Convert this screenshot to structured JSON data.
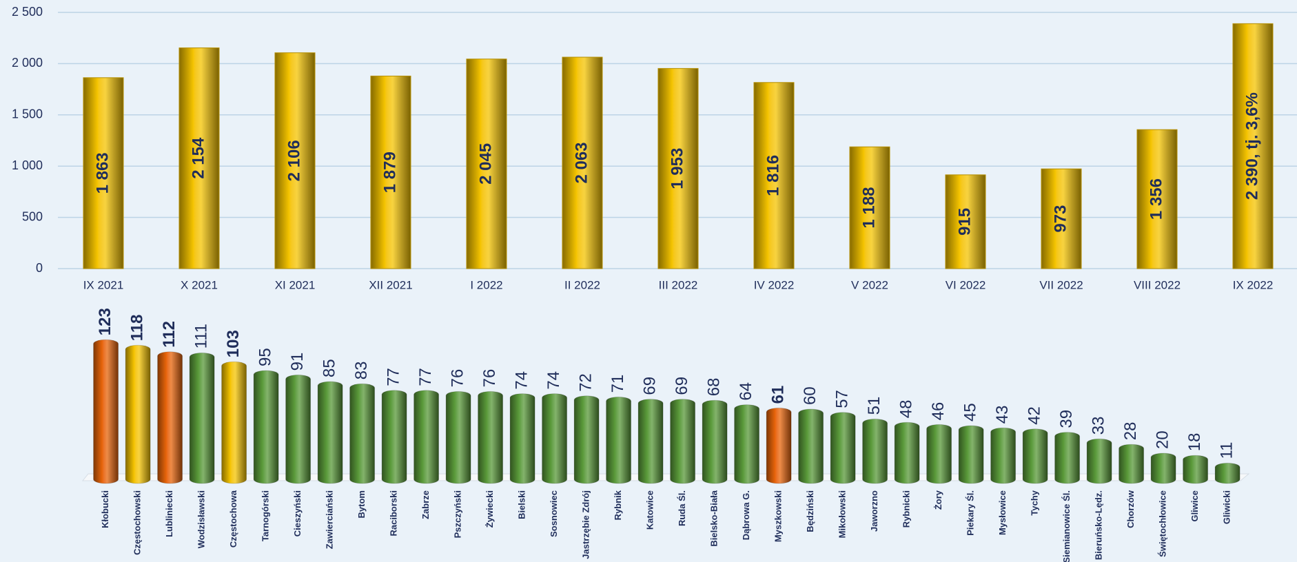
{
  "chart_data": [
    {
      "type": "bar",
      "categories": [
        "IX 2021",
        "X 2021",
        "XI 2021",
        "XII 2021",
        "I 2022",
        "II 2022",
        "III 2022",
        "IV 2022",
        "V 2022",
        "VI 2022",
        "VII 2022",
        "VIII 2022",
        "IX 2022"
      ],
      "values": [
        1863,
        2154,
        2106,
        1879,
        2045,
        2063,
        1953,
        1816,
        1188,
        915,
        973,
        1356,
        2390
      ],
      "value_labels": [
        "1 863",
        "2 154",
        "2 106",
        "1 879",
        "2 045",
        "2 063",
        "1 953",
        "1 816",
        "1 188",
        "915",
        "973",
        "1 356",
        "2 390, tj. 3,6%"
      ],
      "color": "#f5c400",
      "ylim": [
        0,
        2500
      ],
      "yticks": [
        0,
        500,
        {
          "value": 1000,
          "label": "1 000"
        },
        {
          "value": 1500,
          "label": "1 500"
        },
        {
          "value": 2000,
          "label": "2 000"
        },
        {
          "value": 2500,
          "label": "2 500"
        }
      ],
      "grid": true
    },
    {
      "type": "cylinder",
      "categories": [
        "Kłobucki",
        "Częstochowski",
        "Lubliniecki",
        "Wodzisławski",
        "Częstochowa",
        "Tarnogórski",
        "Cieszyński",
        "Zawierciański",
        "Bytom",
        "Raciborski",
        "Zabrze",
        "Pszczyński",
        "Żywiecki",
        "Bielski",
        "Sosnowiec",
        "Jastrzębie Zdrój",
        "Rybnik",
        "Katowice",
        "Ruda Śl.",
        "Bielsko-Biała",
        "Dąbrowa G.",
        "Myszkowski",
        "Będziński",
        "Mikołowski",
        "Jaworzno",
        "Rybnicki",
        "Żory",
        "Piekary Śl.",
        "Mysłowice",
        "Tychy",
        "Siemianowice Śl.",
        "Bieruńsko-Lędz.",
        "Chorzów",
        "Świętochłowice",
        "Gliwice",
        "Gliwicki"
      ],
      "values": [
        123,
        118,
        112,
        111,
        103,
        95,
        91,
        85,
        83,
        77,
        77,
        76,
        76,
        74,
        74,
        72,
        71,
        69,
        69,
        68,
        64,
        61,
        60,
        57,
        51,
        48,
        46,
        45,
        43,
        42,
        39,
        33,
        28,
        20,
        18,
        11
      ],
      "color": "#5a9a3a",
      "colors": [
        "#e8650a",
        "#f5c400",
        "#e8650a",
        "#5a9a3a",
        "#f5c400",
        "#5a9a3a",
        "#5a9a3a",
        "#5a9a3a",
        "#5a9a3a",
        "#5a9a3a",
        "#5a9a3a",
        "#5a9a3a",
        "#5a9a3a",
        "#5a9a3a",
        "#5a9a3a",
        "#5a9a3a",
        "#5a9a3a",
        "#5a9a3a",
        "#5a9a3a",
        "#5a9a3a",
        "#5a9a3a",
        "#e8650a",
        "#5a9a3a",
        "#5a9a3a",
        "#5a9a3a",
        "#5a9a3a",
        "#5a9a3a",
        "#5a9a3a",
        "#5a9a3a",
        "#5a9a3a",
        "#5a9a3a",
        "#5a9a3a",
        "#5a9a3a",
        "#5a9a3a",
        "#5a9a3a",
        "#5a9a3a"
      ]
    }
  ]
}
